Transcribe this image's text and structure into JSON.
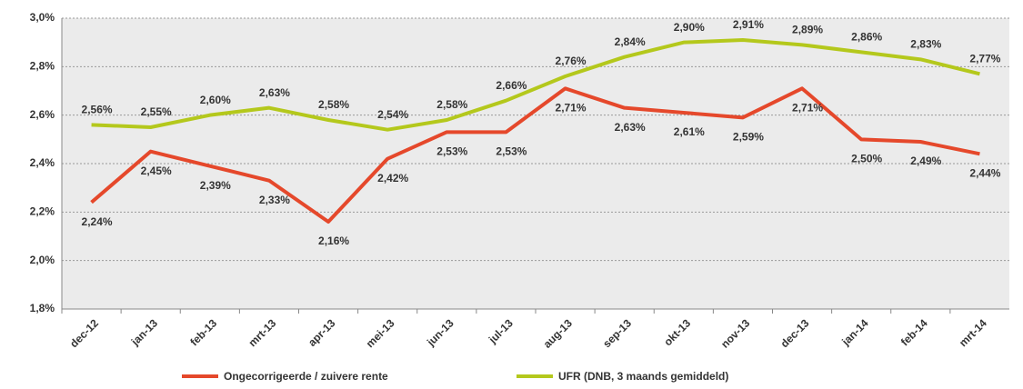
{
  "chart_data": {
    "type": "line",
    "categories": [
      "dec-12",
      "jan-13",
      "feb-13",
      "mrt-13",
      "apr-13",
      "mei-13",
      "jun-13",
      "jul-13",
      "aug-13",
      "sep-13",
      "okt-13",
      "nov-13",
      "dec-13",
      "jan-14",
      "feb-14",
      "mrt-14"
    ],
    "series": [
      {
        "name": "Ongecorrigeerde / zuivere rente",
        "color": "#e5482b",
        "values": [
          2.24,
          2.45,
          2.39,
          2.33,
          2.16,
          2.42,
          2.53,
          2.53,
          2.71,
          2.63,
          2.61,
          2.59,
          2.71,
          2.5,
          2.49,
          2.44
        ],
        "value_labels": [
          "2,24%",
          "2,45%",
          "2,39%",
          "2,33%",
          "2,16%",
          "2,42%",
          "2,53%",
          "2,53%",
          "2,71%",
          "2,63%",
          "2,61%",
          "2,59%",
          "2,71%",
          "2,50%",
          "2,49%",
          "2,44%"
        ]
      },
      {
        "name": "UFR (DNB, 3 maands gemiddeld)",
        "color": "#b4c81c",
        "values": [
          2.56,
          2.55,
          2.6,
          2.63,
          2.58,
          2.54,
          2.58,
          2.66,
          2.76,
          2.84,
          2.9,
          2.91,
          2.89,
          2.86,
          2.83,
          2.77
        ],
        "value_labels": [
          "2,56%",
          "2,55%",
          "2,60%",
          "2,63%",
          "2,58%",
          "2,54%",
          "2,58%",
          "2,66%",
          "2,76%",
          "2,84%",
          "2,90%",
          "2,91%",
          "2,89%",
          "2,86%",
          "2,83%",
          "2,77%"
        ]
      }
    ],
    "ylim": [
      1.8,
      3.0
    ],
    "yticks": [
      {
        "value": 1.8,
        "label": "1,8%"
      },
      {
        "value": 2.0,
        "label": "2,0%"
      },
      {
        "value": 2.2,
        "label": "2,2%"
      },
      {
        "value": 2.4,
        "label": "2,4%"
      },
      {
        "value": 2.6,
        "label": "2,6%"
      },
      {
        "value": 2.8,
        "label": "2,8%"
      },
      {
        "value": 3.0,
        "label": "3,0%"
      }
    ],
    "grid": true
  }
}
